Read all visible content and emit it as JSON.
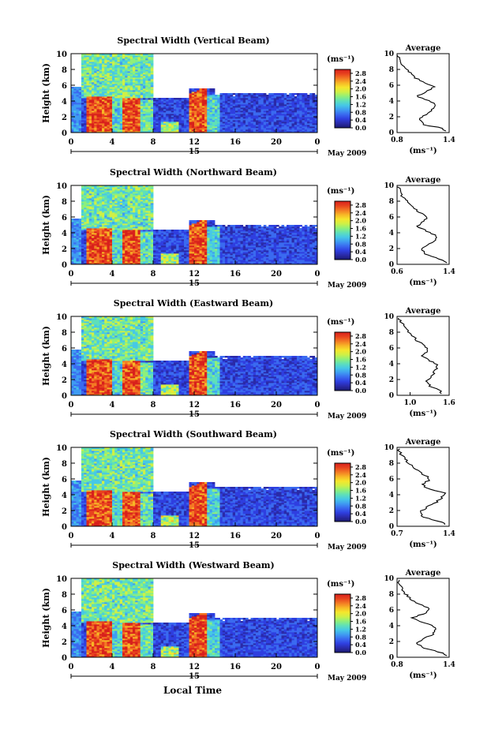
{
  "chart_data": {
    "type": "heatmap",
    "shared": {
      "xlabel": "Local Time",
      "ylabel": "Height (km)",
      "xticks": [
        "0",
        "4",
        "8",
        "12",
        "16",
        "20",
        "0"
      ],
      "date_label": "15",
      "month_label": "May 2009",
      "xlim": [
        0,
        24
      ],
      "ylim": [
        0,
        10
      ],
      "yticks": [
        "0",
        "2",
        "4",
        "6",
        "8",
        "10"
      ],
      "colorbar_unit": "(ms⁻¹)",
      "colorbar_ticks": [
        "0.0",
        "0.4",
        "0.8",
        "1.2",
        "1.6",
        "2.0",
        "2.4",
        "2.8"
      ],
      "colorbar_range": [
        0,
        3.0
      ],
      "profile_title": "Average",
      "profile_xlabel": "(ms⁻¹)",
      "palette": [
        "#1a1a70",
        "#2a2aa8",
        "#2f3fe0",
        "#3a6af0",
        "#3f9cf2",
        "#46c8e6",
        "#5fe0b8",
        "#8ff07a",
        "#cff046",
        "#f6e62c",
        "#f7b626",
        "#f37a24",
        "#e8431e",
        "#d8201c"
      ]
    },
    "panels": [
      {
        "title": "Spectral Width (Vertical Beam)",
        "profile_xlim": [
          0.8,
          1.4
        ],
        "profile_xticks": [
          "0.8",
          "1.4"
        ],
        "profile": [
          [
            1.36,
            0.2
          ],
          [
            1.3,
            0.6
          ],
          [
            1.1,
            1.0
          ],
          [
            1.05,
            1.6
          ],
          [
            1.12,
            2.2
          ],
          [
            1.2,
            2.8
          ],
          [
            1.25,
            3.4
          ],
          [
            1.18,
            4.0
          ],
          [
            1.02,
            4.6
          ],
          [
            1.15,
            5.2
          ],
          [
            1.22,
            5.8
          ],
          [
            1.1,
            6.4
          ],
          [
            1.0,
            7.0
          ],
          [
            0.95,
            7.6
          ],
          [
            0.88,
            8.4
          ],
          [
            0.83,
            9.2
          ],
          [
            0.8,
            9.8
          ]
        ]
      },
      {
        "title": "Spectral Width (Northward Beam)",
        "profile_xlim": [
          0.6,
          1.4
        ],
        "profile_xticks": [
          "0.6",
          "1.4"
        ],
        "profile": [
          [
            1.35,
            0.2
          ],
          [
            1.28,
            0.6
          ],
          [
            1.05,
            1.2
          ],
          [
            0.98,
            1.8
          ],
          [
            1.05,
            2.4
          ],
          [
            1.18,
            3.0
          ],
          [
            1.2,
            3.6
          ],
          [
            1.05,
            4.2
          ],
          [
            0.92,
            4.8
          ],
          [
            1.0,
            5.4
          ],
          [
            1.08,
            6.0
          ],
          [
            0.95,
            6.6
          ],
          [
            0.82,
            7.4
          ],
          [
            0.72,
            8.2
          ],
          [
            0.65,
            9.0
          ],
          [
            0.62,
            9.8
          ]
        ]
      },
      {
        "title": "Spectral Width (Eastward Beam)",
        "profile_xlim": [
          0.8,
          1.6
        ],
        "profile_xticks": [
          "1.0",
          "1.6"
        ],
        "profile": [
          [
            1.5,
            0.2
          ],
          [
            1.45,
            0.6
          ],
          [
            1.3,
            1.2
          ],
          [
            1.25,
            1.8
          ],
          [
            1.32,
            2.4
          ],
          [
            1.38,
            3.0
          ],
          [
            1.42,
            3.8
          ],
          [
            1.3,
            4.4
          ],
          [
            1.2,
            5.0
          ],
          [
            1.28,
            5.6
          ],
          [
            1.22,
            6.2
          ],
          [
            1.1,
            7.0
          ],
          [
            1.0,
            7.8
          ],
          [
            0.92,
            8.6
          ],
          [
            0.85,
            9.4
          ],
          [
            0.82,
            9.9
          ]
        ]
      },
      {
        "title": "Spectral Width (Southward Beam)",
        "profile_xlim": [
          0.7,
          1.4
        ],
        "profile_xticks": [
          "0.7",
          "1.4"
        ],
        "profile": [
          [
            1.35,
            0.2
          ],
          [
            1.28,
            0.6
          ],
          [
            1.05,
            1.2
          ],
          [
            1.0,
            1.8
          ],
          [
            1.1,
            2.4
          ],
          [
            1.22,
            3.0
          ],
          [
            1.3,
            3.6
          ],
          [
            1.35,
            4.2
          ],
          [
            1.1,
            4.8
          ],
          [
            1.05,
            5.4
          ],
          [
            1.15,
            6.0
          ],
          [
            1.05,
            6.6
          ],
          [
            0.95,
            7.2
          ],
          [
            0.85,
            8.0
          ],
          [
            0.78,
            8.8
          ],
          [
            0.72,
            9.6
          ]
        ]
      },
      {
        "title": "Spectral Width (Westward Beam)",
        "profile_xlim": [
          0.8,
          1.4
        ],
        "profile_xticks": [
          "0.8",
          "1.4"
        ],
        "profile": [
          [
            1.38,
            0.2
          ],
          [
            1.3,
            0.6
          ],
          [
            1.1,
            1.2
          ],
          [
            1.02,
            1.8
          ],
          [
            1.12,
            2.4
          ],
          [
            1.22,
            3.0
          ],
          [
            1.25,
            3.8
          ],
          [
            1.1,
            4.4
          ],
          [
            0.98,
            5.0
          ],
          [
            1.12,
            5.6
          ],
          [
            1.18,
            6.2
          ],
          [
            1.05,
            6.8
          ],
          [
            0.95,
            7.4
          ],
          [
            0.88,
            8.2
          ],
          [
            0.84,
            9.0
          ],
          [
            0.81,
            9.8
          ]
        ]
      }
    ]
  }
}
